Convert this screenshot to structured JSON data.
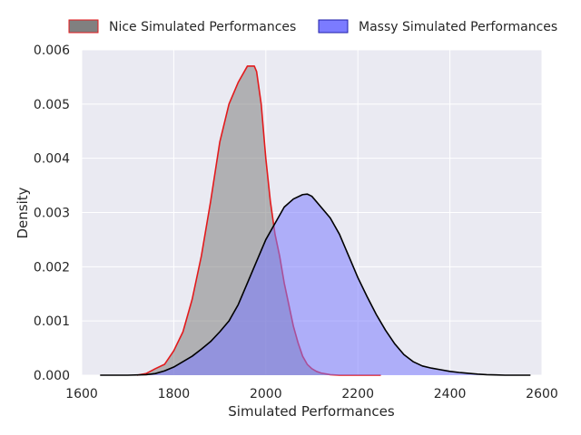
{
  "chart_data": {
    "type": "area",
    "title": "",
    "xlabel": "Simulated Performances",
    "ylabel": "Density",
    "xlim": [
      1600,
      2600
    ],
    "ylim": [
      0,
      0.006
    ],
    "xticks": [
      1600,
      1800,
      2000,
      2200,
      2400,
      2600
    ],
    "xtick_labels": [
      "1600",
      "1800",
      "2000",
      "2200",
      "2400",
      "2600"
    ],
    "yticks": [
      0,
      0.001,
      0.002,
      0.003,
      0.004,
      0.005,
      0.006
    ],
    "ytick_labels": [
      "0.000",
      "0.001",
      "0.002",
      "0.003",
      "0.004",
      "0.005",
      "0.006"
    ],
    "grid": true,
    "legend_position": "top-center, above plot",
    "background_color": "#eaeaf2",
    "series": [
      {
        "name": "Nice Simulated Performances",
        "fill_color": "#808080",
        "line_color": "#e31a1c",
        "fill_opacity": 0.55,
        "x": [
          1720,
          1740,
          1760,
          1780,
          1800,
          1820,
          1840,
          1860,
          1880,
          1900,
          1920,
          1940,
          1960,
          1970,
          1975,
          1980,
          1990,
          2000,
          2010,
          2020,
          2030,
          2040,
          2050,
          2060,
          2070,
          2080,
          2090,
          2100,
          2110,
          2120,
          2140,
          2160,
          2180,
          2200,
          2250
        ],
        "y": [
          0.0,
          3e-05,
          0.00012,
          0.0002,
          0.00045,
          0.0008,
          0.0014,
          0.0022,
          0.0032,
          0.0043,
          0.005,
          0.0054,
          0.0057,
          0.0057,
          0.0057,
          0.0056,
          0.005,
          0.004,
          0.0032,
          0.0026,
          0.0022,
          0.0017,
          0.0013,
          0.0009,
          0.0006,
          0.00035,
          0.0002,
          0.00012,
          7e-05,
          4e-05,
          1e-05,
          0.0,
          0.0,
          0.0,
          0.0
        ]
      },
      {
        "name": "Massy Simulated Performances",
        "fill_color": "#7b7bff",
        "line_color": "#000000",
        "fill_opacity": 0.55,
        "x": [
          1640,
          1700,
          1740,
          1760,
          1780,
          1800,
          1820,
          1840,
          1860,
          1880,
          1900,
          1920,
          1940,
          1960,
          1980,
          2000,
          2020,
          2040,
          2060,
          2080,
          2090,
          2100,
          2120,
          2140,
          2160,
          2180,
          2200,
          2220,
          2240,
          2260,
          2280,
          2300,
          2320,
          2340,
          2360,
          2380,
          2400,
          2420,
          2440,
          2460,
          2480,
          2500,
          2520,
          2540,
          2560,
          2575
        ],
        "y": [
          0.0,
          0.0,
          1e-05,
          3e-05,
          8e-05,
          0.00015,
          0.00025,
          0.00035,
          0.00048,
          0.00062,
          0.0008,
          0.001,
          0.0013,
          0.0017,
          0.0021,
          0.0025,
          0.0028,
          0.0031,
          0.00325,
          0.00333,
          0.00334,
          0.0033,
          0.0031,
          0.0029,
          0.0026,
          0.0022,
          0.0018,
          0.00145,
          0.00112,
          0.00083,
          0.00058,
          0.00038,
          0.00025,
          0.00017,
          0.00013,
          0.0001,
          7e-05,
          5e-05,
          3.5e-05,
          2e-05,
          1e-05,
          5e-06,
          0.0,
          0.0,
          0.0,
          0.0
        ]
      }
    ]
  }
}
